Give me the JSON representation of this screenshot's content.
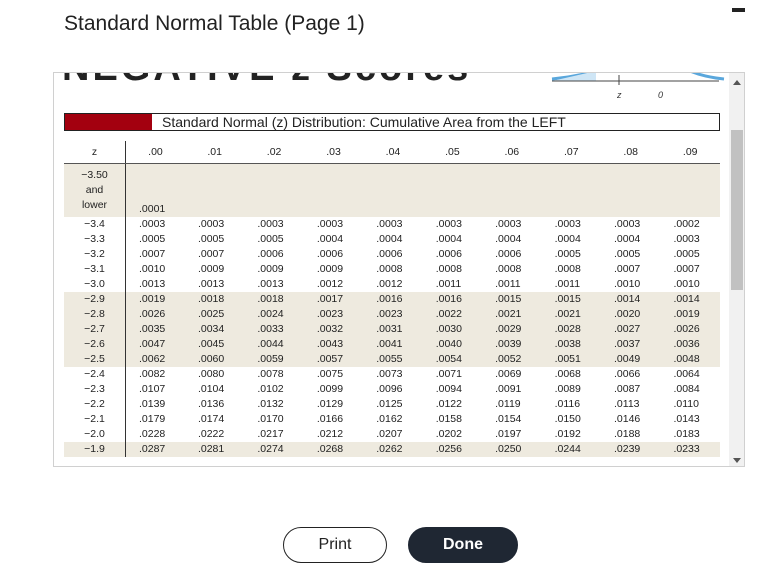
{
  "dialog_title": "Standard Normal Table (Page 1)",
  "banner": "NEGATIVE z Scores",
  "graph_labels": [
    "z",
    "0"
  ],
  "table": {
    "caption": "Standard Normal (z) Distribution: Cumulative Area from the LEFT",
    "header": [
      "z",
      ".00",
      ".01",
      ".02",
      ".03",
      ".04",
      ".05",
      ".06",
      ".07",
      ".08",
      ".09"
    ],
    "rows": [
      [
        "−3.50 and lower",
        ".0001"
      ],
      [
        "−3.4",
        ".0003",
        ".0003",
        ".0003",
        ".0003",
        ".0003",
        ".0003",
        ".0003",
        ".0003",
        ".0003",
        ".0002"
      ],
      [
        "−3.3",
        ".0005",
        ".0005",
        ".0005",
        ".0004",
        ".0004",
        ".0004",
        ".0004",
        ".0004",
        ".0004",
        ".0003"
      ],
      [
        "−3.2",
        ".0007",
        ".0007",
        ".0006",
        ".0006",
        ".0006",
        ".0006",
        ".0006",
        ".0005",
        ".0005",
        ".0005"
      ],
      [
        "−3.1",
        ".0010",
        ".0009",
        ".0009",
        ".0009",
        ".0008",
        ".0008",
        ".0008",
        ".0008",
        ".0007",
        ".0007"
      ],
      [
        "−3.0",
        ".0013",
        ".0013",
        ".0013",
        ".0012",
        ".0012",
        ".0011",
        ".0011",
        ".0011",
        ".0010",
        ".0010"
      ],
      [
        "−2.9",
        ".0019",
        ".0018",
        ".0018",
        ".0017",
        ".0016",
        ".0016",
        ".0015",
        ".0015",
        ".0014",
        ".0014"
      ],
      [
        "−2.8",
        ".0026",
        ".0025",
        ".0024",
        ".0023",
        ".0023",
        ".0022",
        ".0021",
        ".0021",
        ".0020",
        ".0019"
      ],
      [
        "−2.7",
        ".0035",
        ".0034",
        ".0033",
        ".0032",
        ".0031",
        ".0030",
        ".0029",
        ".0028",
        ".0027",
        ".0026"
      ],
      [
        "−2.6",
        ".0047",
        ".0045",
        ".0044",
        ".0043",
        ".0041",
        ".0040",
        ".0039",
        ".0038",
        ".0037",
        ".0036"
      ],
      [
        "−2.5",
        ".0062",
        ".0060",
        ".0059",
        ".0057",
        ".0055",
        ".0054",
        ".0052",
        ".0051",
        ".0049",
        ".0048"
      ],
      [
        "−2.4",
        ".0082",
        ".0080",
        ".0078",
        ".0075",
        ".0073",
        ".0071",
        ".0069",
        ".0068",
        ".0066",
        ".0064"
      ],
      [
        "−2.3",
        ".0107",
        ".0104",
        ".0102",
        ".0099",
        ".0096",
        ".0094",
        ".0091",
        ".0089",
        ".0087",
        ".0084"
      ],
      [
        "−2.2",
        ".0139",
        ".0136",
        ".0132",
        ".0129",
        ".0125",
        ".0122",
        ".0119",
        ".0116",
        ".0113",
        ".0110"
      ],
      [
        "−2.1",
        ".0179",
        ".0174",
        ".0170",
        ".0166",
        ".0162",
        ".0158",
        ".0154",
        ".0150",
        ".0146",
        ".0143"
      ],
      [
        "−2.0",
        ".0228",
        ".0222",
        ".0217",
        ".0212",
        ".0207",
        ".0202",
        ".0197",
        ".0192",
        ".0188",
        ".0183"
      ],
      [
        "−1.9",
        ".0287",
        ".0281",
        ".0274",
        ".0268",
        ".0262",
        ".0256",
        ".0250",
        ".0244",
        ".0239",
        ".0233"
      ]
    ]
  },
  "buttons": [
    "Print",
    "Done"
  ]
}
